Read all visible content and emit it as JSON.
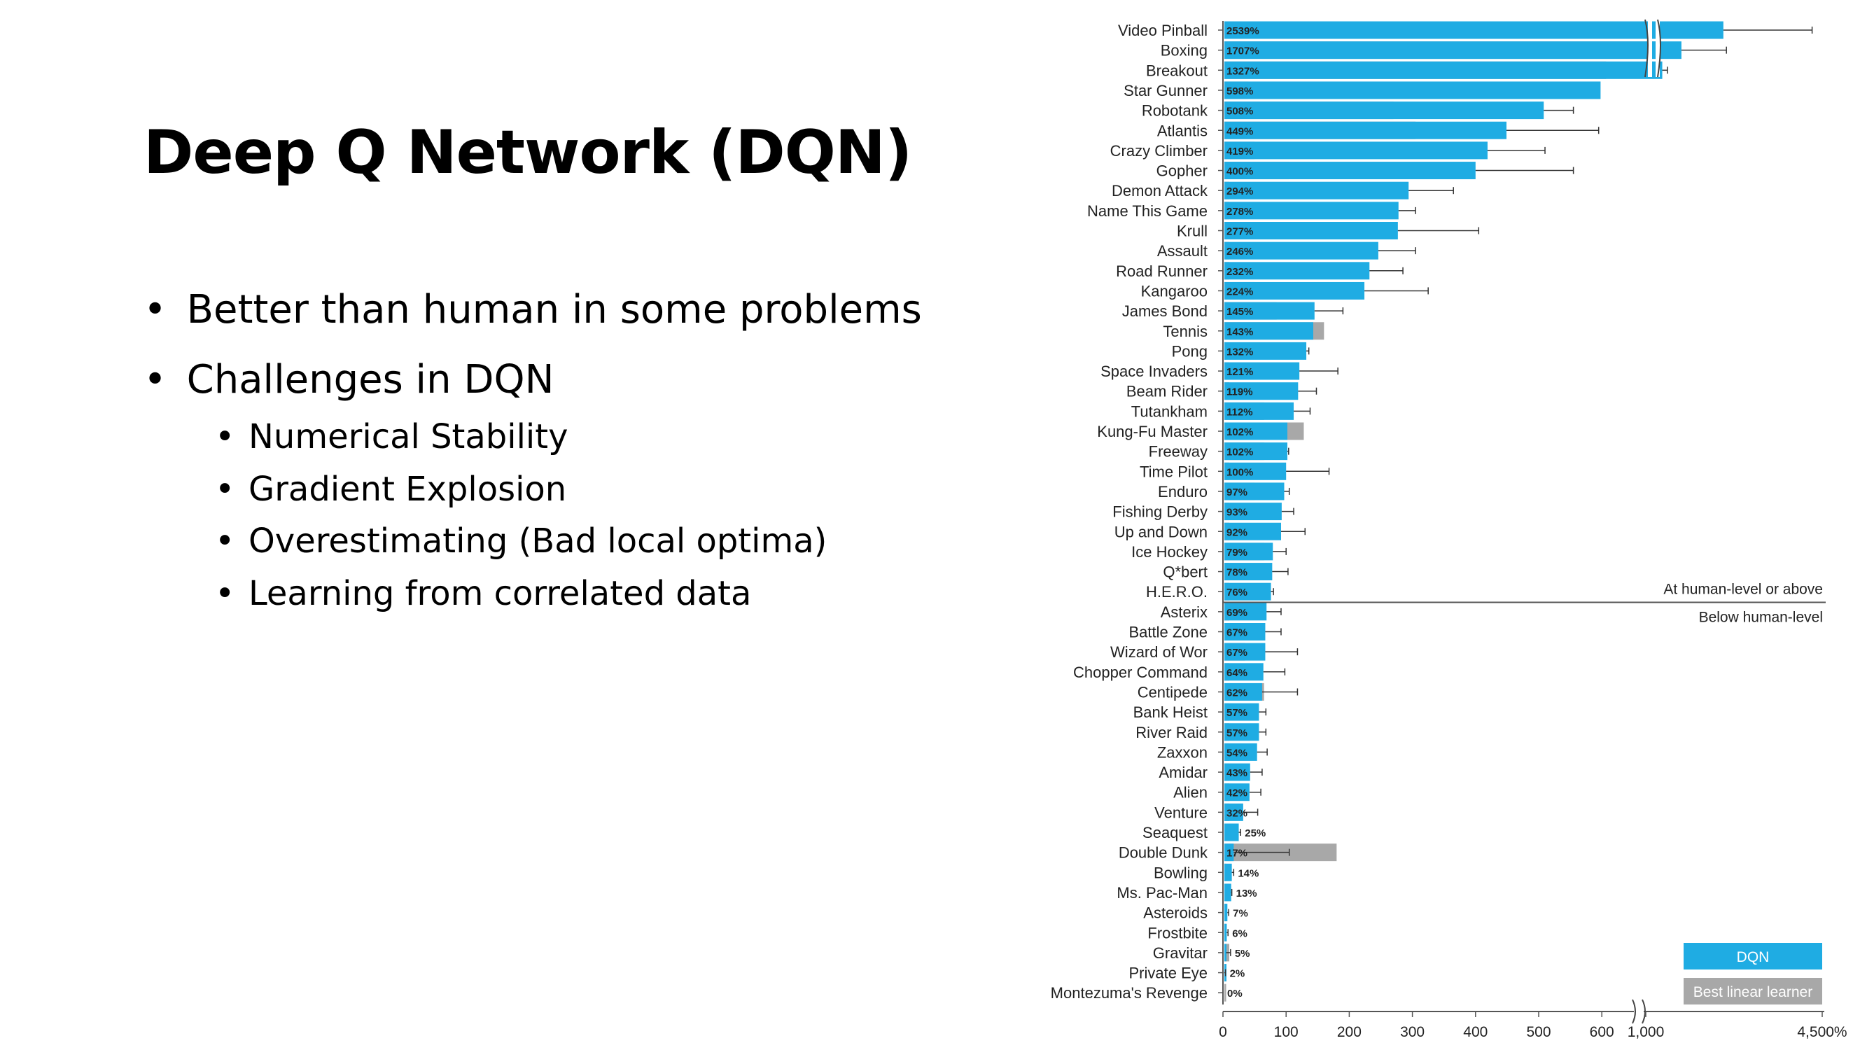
{
  "slide": {
    "title": "Deep Q Network (DQN)",
    "bullets": [
      {
        "text": "Better than human in some problems",
        "level": 1
      },
      {
        "text": "Challenges in DQN",
        "level": 1
      },
      {
        "text": "Numerical Stability",
        "level": 2
      },
      {
        "text": "Gradient Explosion",
        "level": 2
      },
      {
        "text": "Overestimating (Bad local optima)",
        "level": 2
      },
      {
        "text": "Learning from correlated data",
        "level": 2
      }
    ]
  },
  "chart_data": {
    "type": "bar",
    "orientation": "horizontal",
    "units": "percent of human-level score",
    "x_axis": {
      "ticks": [
        "0",
        "100",
        "200",
        "300",
        "400",
        "500",
        "600",
        "1,000",
        "4,500%"
      ],
      "broken": true
    },
    "threshold_labels": {
      "above": "At human-level or above",
      "below": "Below human-level"
    },
    "legend": {
      "position": "bottom-right",
      "items": [
        {
          "label": "DQN",
          "color": "#1FACE3"
        },
        {
          "label": "Best linear learner",
          "color": "#A8A8A8"
        }
      ]
    },
    "colors": {
      "dqn": "#1FACE3",
      "linear": "#A8A8A8"
    },
    "games": [
      {
        "name": "Video Pinball",
        "label": "2539%",
        "dqn": 2539,
        "linear": 335,
        "err": 4300
      },
      {
        "name": "Boxing",
        "label": "1707%",
        "dqn": 1707,
        "linear": 1310,
        "err": 2600
      },
      {
        "name": "Breakout",
        "label": "1327%",
        "dqn": 1327,
        "linear": 640,
        "err": 1430
      },
      {
        "name": "Star Gunner",
        "label": "598%",
        "dqn": 598,
        "linear": 40,
        "err": null
      },
      {
        "name": "Robotank",
        "label": "508%",
        "dqn": 508,
        "linear": 270,
        "err": 555
      },
      {
        "name": "Atlantis",
        "label": "449%",
        "dqn": 449,
        "linear": 305,
        "err": 595
      },
      {
        "name": "Crazy Climber",
        "label": "419%",
        "dqn": 419,
        "linear": 50,
        "err": 510
      },
      {
        "name": "Gopher",
        "label": "400%",
        "dqn": 400,
        "linear": 105,
        "err": 555
      },
      {
        "name": "Demon Attack",
        "label": "294%",
        "dqn": 294,
        "linear": 10,
        "err": 365
      },
      {
        "name": "Name This Game",
        "label": "278%",
        "dqn": 278,
        "linear": 10,
        "err": 305
      },
      {
        "name": "Krull",
        "label": "277%",
        "dqn": 277,
        "linear": 222,
        "err": 405
      },
      {
        "name": "Assault",
        "label": "246%",
        "dqn": 246,
        "linear": 10,
        "err": 305
      },
      {
        "name": "Road Runner",
        "label": "232%",
        "dqn": 232,
        "linear": 10,
        "err": 285
      },
      {
        "name": "Kangaroo",
        "label": "224%",
        "dqn": 224,
        "linear": 50,
        "err": 325
      },
      {
        "name": "James Bond",
        "label": "145%",
        "dqn": 145,
        "linear": 85,
        "err": 190
      },
      {
        "name": "Tennis",
        "label": "143%",
        "dqn": 143,
        "linear": 160,
        "err": null
      },
      {
        "name": "Pong",
        "label": "132%",
        "dqn": 132,
        "linear": 5,
        "err": 136
      },
      {
        "name": "Space Invaders",
        "label": "121%",
        "dqn": 121,
        "linear": 10,
        "err": 182
      },
      {
        "name": "Beam Rider",
        "label": "119%",
        "dqn": 119,
        "linear": 10,
        "err": 148
      },
      {
        "name": "Tutankham",
        "label": "112%",
        "dqn": 112,
        "linear": 65,
        "err": 138
      },
      {
        "name": "Kung-Fu Master",
        "label": "102%",
        "dqn": 102,
        "linear": 128,
        "err": null
      },
      {
        "name": "Freeway",
        "label": "102%",
        "dqn": 102,
        "linear": 65,
        "err": 104
      },
      {
        "name": "Time Pilot",
        "label": "100%",
        "dqn": 100,
        "linear": 10,
        "err": 168
      },
      {
        "name": "Enduro",
        "label": "97%",
        "dqn": 97,
        "linear": 50,
        "err": 105
      },
      {
        "name": "Fishing Derby",
        "label": "93%",
        "dqn": 93,
        "linear": 10,
        "err": 112
      },
      {
        "name": "Up and Down",
        "label": "92%",
        "dqn": 92,
        "linear": 10,
        "err": 130
      },
      {
        "name": "Ice Hockey",
        "label": "79%",
        "dqn": 79,
        "linear": 65,
        "err": 100
      },
      {
        "name": "Q*bert",
        "label": "78%",
        "dqn": 78,
        "linear": 10,
        "err": 103
      },
      {
        "name": "H.E.R.O.",
        "label": "76%",
        "dqn": 76,
        "linear": 10,
        "err": 80
      },
      {
        "name": "Asterix",
        "label": "69%",
        "dqn": 69,
        "linear": 10,
        "err": 92
      },
      {
        "name": "Battle Zone",
        "label": "67%",
        "dqn": 67,
        "linear": 40,
        "err": 92
      },
      {
        "name": "Wizard of Wor",
        "label": "67%",
        "dqn": 67,
        "linear": 35,
        "err": 118
      },
      {
        "name": "Chopper Command",
        "label": "64%",
        "dqn": 64,
        "linear": 10,
        "err": 98
      },
      {
        "name": "Centipede",
        "label": "62%",
        "dqn": 62,
        "linear": 65,
        "err": 118
      },
      {
        "name": "Bank Heist",
        "label": "57%",
        "dqn": 57,
        "linear": 10,
        "err": 68
      },
      {
        "name": "River Raid",
        "label": "57%",
        "dqn": 57,
        "linear": 10,
        "err": 68
      },
      {
        "name": "Zaxxon",
        "label": "54%",
        "dqn": 54,
        "linear": 10,
        "err": 70
      },
      {
        "name": "Amidar",
        "label": "43%",
        "dqn": 43,
        "linear": 10,
        "err": 62
      },
      {
        "name": "Alien",
        "label": "42%",
        "dqn": 42,
        "linear": 10,
        "err": 60
      },
      {
        "name": "Venture",
        "label": "32%",
        "dqn": 32,
        "linear": 10,
        "err": 55
      },
      {
        "name": "Seaquest",
        "label": "25%",
        "dqn": 25,
        "linear": 5,
        "err": 28
      },
      {
        "name": "Double Dunk",
        "label": "17%",
        "dqn": 17,
        "linear": 180,
        "err": 105
      },
      {
        "name": "Bowling",
        "label": "14%",
        "dqn": 14,
        "linear": 5,
        "err": 17
      },
      {
        "name": "Ms. Pac-Man",
        "label": "13%",
        "dqn": 13,
        "linear": 10,
        "err": 14
      },
      {
        "name": "Asteroids",
        "label": "7%",
        "dqn": 7,
        "linear": 5,
        "err": 9
      },
      {
        "name": "Frostbite",
        "label": "6%",
        "dqn": 6,
        "linear": 5,
        "err": 8
      },
      {
        "name": "Gravitar",
        "label": "5%",
        "dqn": 5,
        "linear": 10,
        "err": 12
      },
      {
        "name": "Private Eye",
        "label": "2%",
        "dqn": 2,
        "linear": 3,
        "err": 4
      },
      {
        "name": "Montezuma's Revenge",
        "label": "0%",
        "dqn": 0,
        "linear": 5,
        "err": null
      }
    ]
  }
}
